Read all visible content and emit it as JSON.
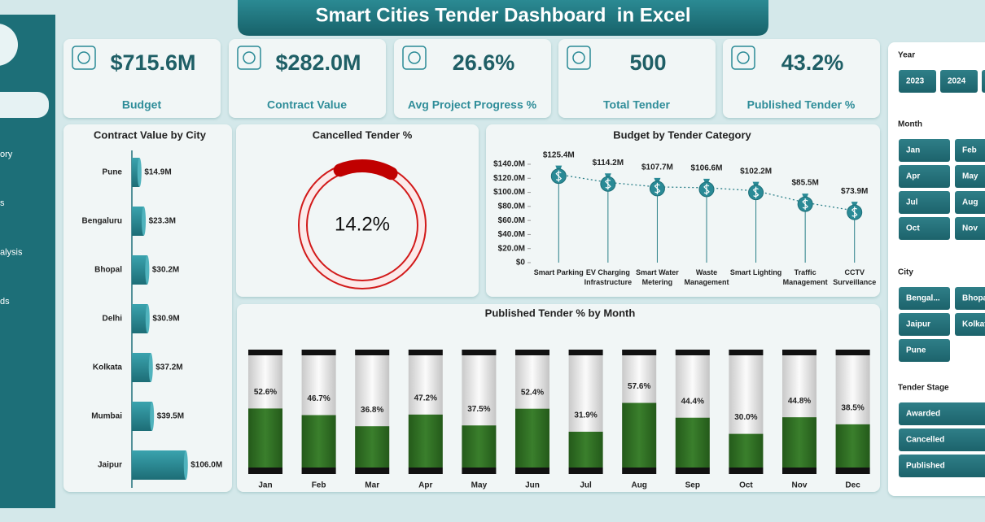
{
  "header": {
    "title": "Smart Cities Tender Dashboard  in Excel"
  },
  "sidebar": {
    "items": [
      "ory",
      "s",
      "alysis",
      "ds"
    ]
  },
  "kpis": [
    {
      "value": "$715.6M",
      "label": "Budget"
    },
    {
      "value": "$282.0M",
      "label": "Contract Value"
    },
    {
      "value": "26.6%",
      "label": "Avg Project Progress %"
    },
    {
      "value": "500",
      "label": "Total Tender"
    },
    {
      "value": "43.2%",
      "label": "Published Tender %"
    }
  ],
  "chart_data": [
    {
      "type": "hbar",
      "title": "Contract Value by City",
      "categories": [
        "Pune",
        "Bengaluru",
        "Bhopal",
        "Delhi",
        "Kolkata",
        "Mumbai",
        "Jaipur"
      ],
      "values": [
        14.9,
        23.3,
        30.2,
        30.9,
        37.2,
        39.5,
        106.0
      ],
      "value_labels": [
        "$14.9M",
        "$23.3M",
        "$30.2M",
        "$30.9M",
        "$37.2M",
        "$39.5M",
        "$106.0M"
      ],
      "color": "#2a8a96",
      "xlim": [
        0,
        120
      ]
    },
    {
      "type": "donut",
      "title": "Cancelled Tender %",
      "value": 14.2,
      "value_label": "14.2%",
      "color": "#c00000"
    },
    {
      "type": "line",
      "title": "Budget by Tender Category",
      "categories": [
        "Smart Parking",
        "EV Charging Infrastructure",
        "Smart Water Metering",
        "Waste Management",
        "Smart Lighting",
        "Traffic Management",
        "CCTV Surveillance"
      ],
      "values": [
        125.4,
        114.2,
        107.7,
        106.6,
        102.2,
        85.5,
        73.9
      ],
      "value_labels": [
        "$125.4M",
        "$114.2M",
        "$107.7M",
        "$106.6M",
        "$102.2M",
        "$85.5M",
        "$73.9M"
      ],
      "color": "#2a8a96",
      "ylim": [
        0,
        140
      ],
      "yticks": [
        {
          "value": 0,
          "label": "$0"
        },
        {
          "value": 20,
          "label": "$20.0M"
        },
        {
          "value": 40,
          "label": "$40.0M"
        },
        {
          "value": 60,
          "label": "$60.0M"
        },
        {
          "value": 80,
          "label": "$80.0M"
        },
        {
          "value": 100,
          "label": "$100.0M"
        },
        {
          "value": 120,
          "label": "$120.0M"
        },
        {
          "value": 140,
          "label": "$140.0M"
        }
      ]
    },
    {
      "type": "battery",
      "title": "Published Tender % by Month",
      "categories": [
        "Jan",
        "Feb",
        "Mar",
        "Apr",
        "May",
        "Jun",
        "Jul",
        "Aug",
        "Sep",
        "Oct",
        "Nov",
        "Dec"
      ],
      "values": [
        52.6,
        46.7,
        36.8,
        47.2,
        37.5,
        52.4,
        31.9,
        57.6,
        44.4,
        30.0,
        44.8,
        38.5
      ],
      "value_labels": [
        "52.6%",
        "46.7%",
        "36.8%",
        "47.2%",
        "37.5%",
        "52.4%",
        "31.9%",
        "57.6%",
        "44.4%",
        "30.0%",
        "44.8%",
        "38.5%"
      ],
      "color": "#2f6b22",
      "ylim": [
        0,
        100
      ]
    }
  ],
  "slicers": [
    {
      "title": "Year",
      "items": [
        "2023",
        "2024"
      ]
    },
    {
      "title": "Month",
      "items": [
        "Jan",
        "Feb",
        "Apr",
        "May",
        "Jul",
        "Aug",
        "Oct",
        "Nov"
      ]
    },
    {
      "title": "City",
      "items": [
        "Bengal...",
        "Bhopa",
        "Jaipur",
        "Kolkat",
        "Pune"
      ]
    },
    {
      "title": "Tender Stage",
      "items": [
        "Awarded",
        "Cancelled",
        "Published"
      ]
    }
  ]
}
